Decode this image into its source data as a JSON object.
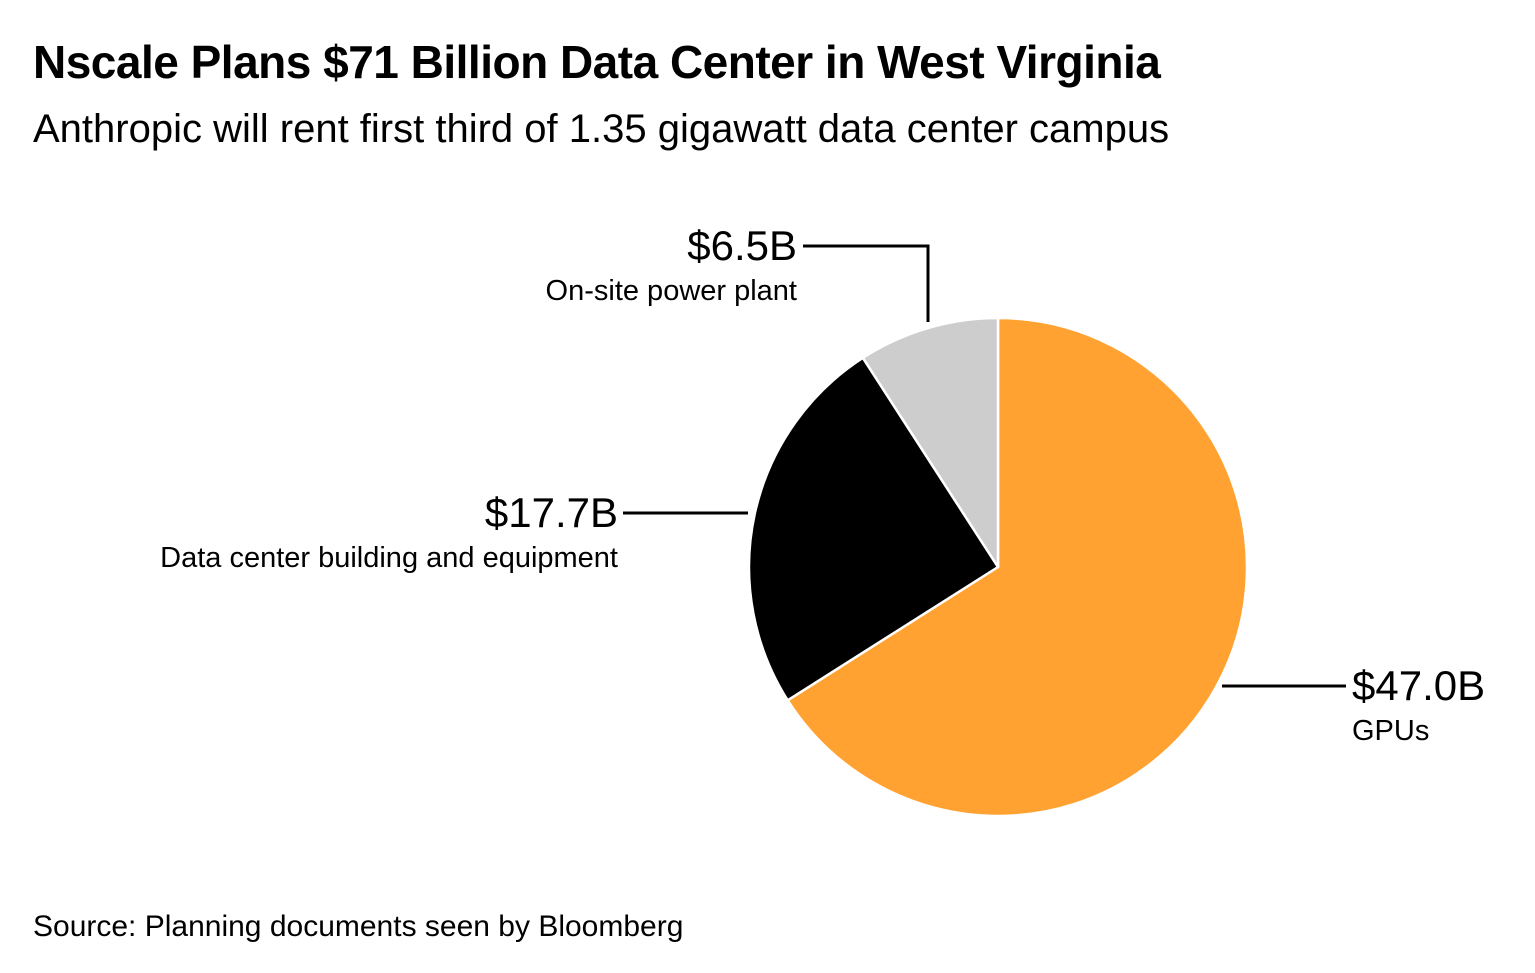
{
  "chart_data": {
    "type": "pie",
    "title": "Nscale Plans $71 Billion Data Center in West Virginia",
    "subtitle": "Anthropic will rent first third of 1.35 gigawatt data center campus",
    "source": "Source: Planning documents seen by Bloomberg",
    "total": 71.2,
    "unit": "$B",
    "start": "12 o'clock",
    "direction": "clockwise",
    "slices": [
      {
        "name": "GPUs",
        "value": 47.0,
        "value_label": "$47.0B",
        "color": "#FFA232"
      },
      {
        "name": "Data center building and equipment",
        "value": 17.7,
        "value_label": "$17.7B",
        "color": "#000000"
      },
      {
        "name": "On-site power plant",
        "value": 6.5,
        "value_label": "$6.5B",
        "color": "#CDCDCD"
      }
    ],
    "legend": "none (direct labels)"
  }
}
